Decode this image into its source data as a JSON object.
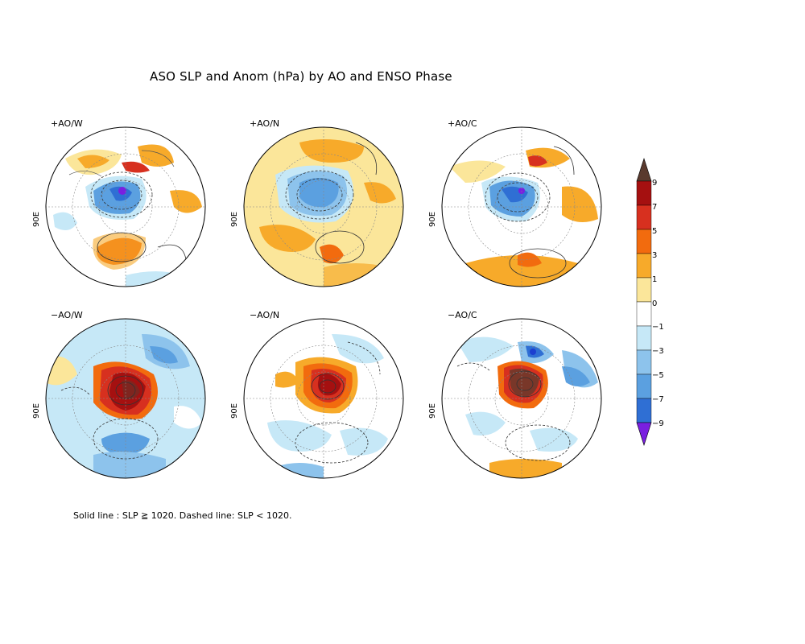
{
  "title": "ASO SLP and Anom (hPa) by AO and ENSO Phase",
  "footnote": "Solid line : SLP ≧ 1020.  Dashed line: SLP < 1020.",
  "panels": [
    {
      "label": "+AO/W",
      "lon_label": "90E"
    },
    {
      "label": "+AO/N",
      "lon_label": "90E"
    },
    {
      "label": "+AO/C",
      "lon_label": "90E"
    },
    {
      "label": "−AO/W",
      "lon_label": "90E"
    },
    {
      "label": "−AO/N",
      "lon_label": "90E"
    },
    {
      "label": "−AO/C",
      "lon_label": "90E"
    }
  ],
  "colorbar": {
    "labels": [
      "9",
      "7",
      "5",
      "3",
      "1",
      "0",
      "−1",
      "−3",
      "−5",
      "−7",
      "−9"
    ],
    "colors": [
      "#5a3a2e",
      "#a51010",
      "#d7301f",
      "#f26b0e",
      "#f7aa2a",
      "#fbe69a",
      "#ffffff",
      "#c6e8f7",
      "#8dc3ec",
      "#5ba0e0",
      "#2f6fd4",
      "#1c3fd0",
      "#7a1fe0"
    ]
  }
}
